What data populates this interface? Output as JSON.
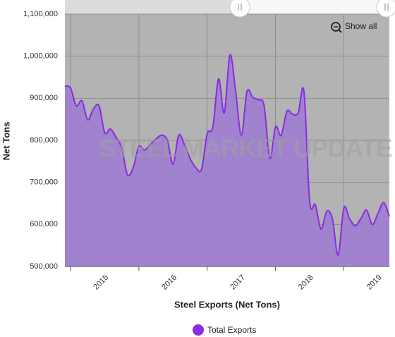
{
  "chart_data": {
    "type": "area",
    "x_label": "Steel Exports (Net Tons)",
    "y_label": "Net Tons",
    "watermark": "STEEL MARKET UPDATE",
    "button": "Show all",
    "x": [
      2014.917,
      2015,
      2015.083,
      2015.167,
      2015.25,
      2015.333,
      2015.417,
      2015.5,
      2015.583,
      2015.667,
      2015.75,
      2015.833,
      2015.917,
      2016,
      2016.083,
      2016.167,
      2016.25,
      2016.333,
      2016.417,
      2016.5,
      2016.583,
      2016.667,
      2016.75,
      2016.833,
      2016.917,
      2017,
      2017.083,
      2017.167,
      2017.25,
      2017.333,
      2017.417,
      2017.5,
      2017.583,
      2017.667,
      2017.75,
      2017.833,
      2017.917,
      2018,
      2018.083,
      2018.167,
      2018.25,
      2018.333,
      2018.417,
      2018.5,
      2018.583,
      2018.667,
      2018.75,
      2018.833,
      2018.917,
      2019,
      2019.083,
      2019.167,
      2019.25,
      2019.333,
      2019.417,
      2019.5,
      2019.583,
      2019.667
    ],
    "series": [
      {
        "name": "Total Exports",
        "color": "#8a2be2",
        "fill": "#9f7fd0",
        "values": [
          929000,
          924000,
          882000,
          894000,
          849000,
          874000,
          882000,
          818000,
          827000,
          807000,
          782000,
          718000,
          735000,
          785000,
          777000,
          790000,
          803000,
          812000,
          800000,
          743000,
          812000,
          790000,
          757000,
          735000,
          731000,
          815000,
          832000,
          946000,
          865000,
          1003000,
          916000,
          812000,
          916000,
          902000,
          896000,
          882000,
          757000,
          832000,
          812000,
          869000,
          862000,
          865000,
          916000,
          656000,
          647000,
          589000,
          631000,
          614000,
          527000,
          639000,
          614000,
          597000,
          614000,
          634000,
          600000,
          626000,
          652000,
          619000
        ]
      }
    ],
    "xlim": [
      2014.917,
      2019.667
    ],
    "xticks": [
      2015,
      2016,
      2017,
      2018,
      2019
    ],
    "ylim": [
      500000,
      1100000
    ],
    "yticks": [
      {
        "value": 500000,
        "label": "500,000"
      },
      {
        "value": 600000,
        "label": "600,000"
      },
      {
        "value": 700000,
        "label": "700,000"
      },
      {
        "value": 800000,
        "label": "800,000"
      },
      {
        "value": 900000,
        "label": "900,000"
      },
      {
        "value": 1000000,
        "label": "1,000,000"
      },
      {
        "value": 1100000,
        "label": "1,100,000"
      }
    ],
    "grid": true,
    "plot_background": "#b3b3b3"
  }
}
